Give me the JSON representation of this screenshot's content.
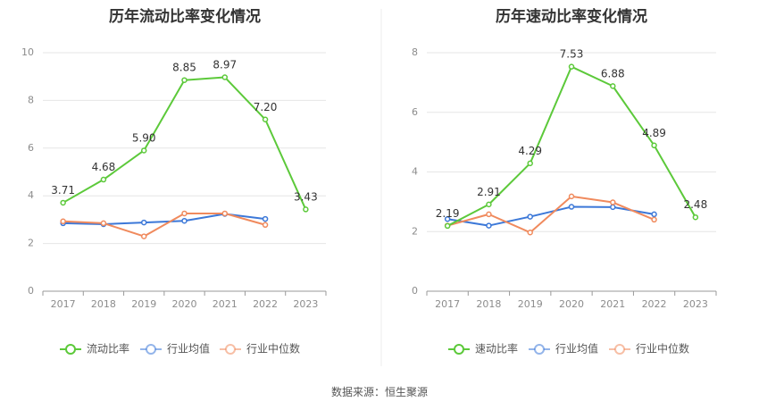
{
  "source": "数据来源：恒生聚源",
  "chart_data": [
    {
      "type": "line",
      "title": "历年流动比率变化情况",
      "categories": [
        "2017",
        "2018",
        "2019",
        "2020",
        "2021",
        "2022",
        "2023"
      ],
      "ylim": [
        0,
        10
      ],
      "yticks": [
        0,
        2,
        4,
        6,
        8,
        10
      ],
      "grid": true,
      "legend": "bottom",
      "series": [
        {
          "name": "流动比率",
          "color": "#5cc93a",
          "values": [
            3.71,
            4.68,
            5.9,
            8.85,
            8.97,
            7.2,
            3.43
          ],
          "labels": [
            "3.71",
            "4.68",
            "5.90",
            "8.85",
            "8.97",
            "7.20",
            "3.43"
          ]
        },
        {
          "name": "行业均值",
          "color": "#3c78d8",
          "values": [
            2.85,
            2.81,
            2.88,
            2.95,
            3.24,
            3.03,
            null
          ]
        },
        {
          "name": "行业中位数",
          "color": "#f08a5d",
          "values": [
            2.93,
            2.85,
            2.3,
            3.26,
            3.26,
            2.78,
            null
          ]
        }
      ]
    },
    {
      "type": "line",
      "title": "历年速动比率变化情况",
      "categories": [
        "2017",
        "2018",
        "2019",
        "2020",
        "2021",
        "2022",
        "2023"
      ],
      "ylim": [
        0,
        8
      ],
      "yticks": [
        0,
        2,
        4,
        6,
        8
      ],
      "grid": true,
      "legend": "bottom",
      "series": [
        {
          "name": "速动比率",
          "color": "#5cc93a",
          "values": [
            2.19,
            2.91,
            4.29,
            7.53,
            6.88,
            4.89,
            2.48
          ],
          "labels": [
            "2.19",
            "2.91",
            "4.29",
            "7.53",
            "6.88",
            "4.89",
            "2.48"
          ]
        },
        {
          "name": "行业均值",
          "color": "#3c78d8",
          "values": [
            2.42,
            2.2,
            2.5,
            2.83,
            2.82,
            2.58,
            null
          ]
        },
        {
          "name": "行业中位数",
          "color": "#f08a5d",
          "values": [
            2.2,
            2.58,
            1.97,
            3.18,
            2.98,
            2.4,
            null
          ]
        }
      ]
    }
  ]
}
